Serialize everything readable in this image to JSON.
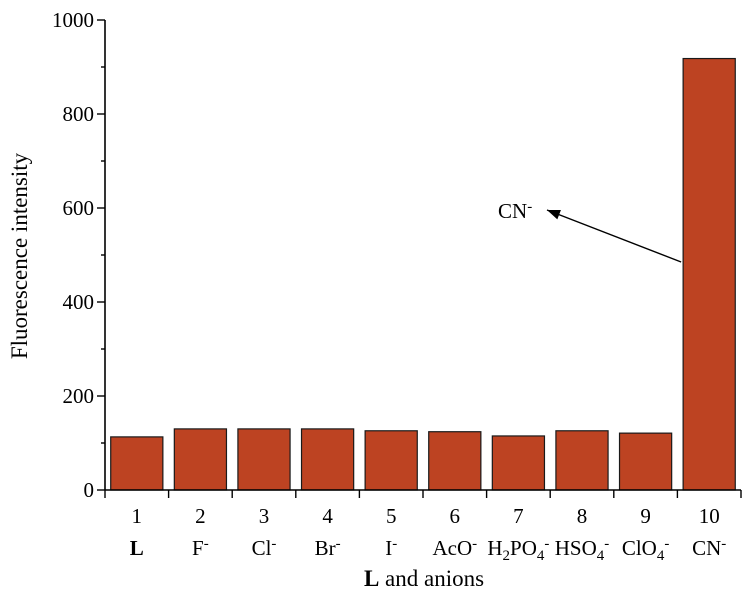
{
  "colors": {
    "bar": "#bd4322",
    "bar_stroke": "#1a1a1a",
    "axis": "#000000"
  },
  "chart_data": {
    "type": "bar",
    "categories": [
      "1",
      "2",
      "3",
      "4",
      "5",
      "6",
      "7",
      "8",
      "9",
      "10"
    ],
    "category_labels": [
      {
        "text": "L",
        "bold": true
      },
      {
        "base": "F",
        "sup": "-"
      },
      {
        "base": "Cl",
        "sup": "-"
      },
      {
        "base": "Br",
        "sup": "-"
      },
      {
        "base": "I",
        "sup": "-"
      },
      {
        "base": "AcO",
        "sup": "-"
      },
      {
        "parts": [
          {
            "t": "H"
          },
          {
            "t": "2",
            "sub": true
          },
          {
            "t": "PO"
          },
          {
            "t": "4",
            "sub": true
          },
          {
            "t": "-",
            "sup": true
          }
        ]
      },
      {
        "parts": [
          {
            "t": "HSO"
          },
          {
            "t": "4",
            "sub": true
          },
          {
            "t": "-",
            "sup": true
          }
        ]
      },
      {
        "parts": [
          {
            "t": "ClO"
          },
          {
            "t": "4",
            "sub": true
          },
          {
            "t": "-",
            "sup": true
          }
        ]
      },
      {
        "base": "CN",
        "sup": "-"
      }
    ],
    "values": [
      113,
      130,
      130,
      130,
      126,
      124,
      115,
      126,
      121,
      918
    ],
    "ylabel": "Fluorescence intensity",
    "xlabel": {
      "bold_part": "L",
      "rest": " and anions"
    },
    "ylim": [
      0,
      1000
    ],
    "yticks": [
      0,
      200,
      400,
      600,
      800,
      1000
    ],
    "y_minor_step": 100,
    "grid": false,
    "annotation": {
      "base": "CN",
      "sup": "-",
      "points_to": "10"
    }
  }
}
